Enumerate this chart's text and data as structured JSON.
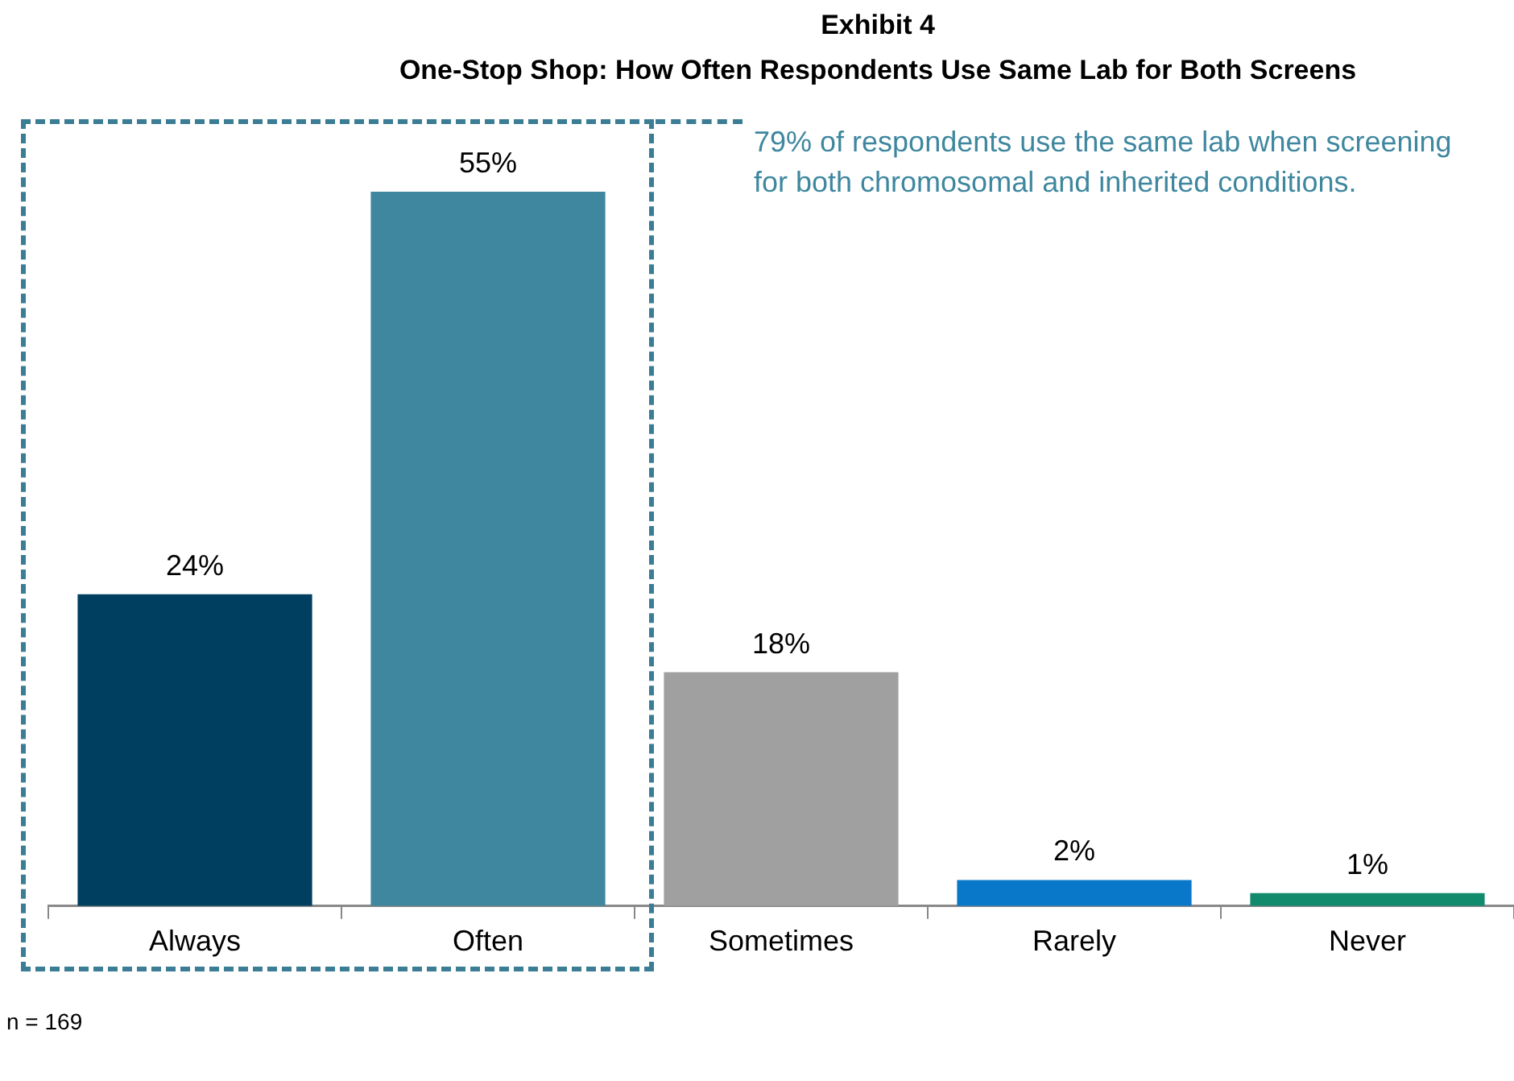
{
  "chart_data": {
    "type": "bar",
    "title": "Exhibit 4",
    "subtitle": "One-Stop Shop: How Often Respondents Use Same Lab for Both Screens",
    "categories": [
      "Always",
      "Often",
      "Sometimes",
      "Rarely",
      "Never"
    ],
    "values": [
      24,
      55,
      18,
      2,
      1
    ],
    "colors": [
      "#013f60",
      "#3e879f",
      "#a0a0a1",
      "#0a78c8",
      "#128a6c"
    ],
    "value_labels": [
      "24%",
      "55%",
      "18%",
      "2%",
      "1%"
    ],
    "grid": false,
    "legend": false,
    "annotations": [
      "79% of respondents use the same lab when screening for both chromosomal and inherited conditions.",
      "n = 169"
    ]
  }
}
